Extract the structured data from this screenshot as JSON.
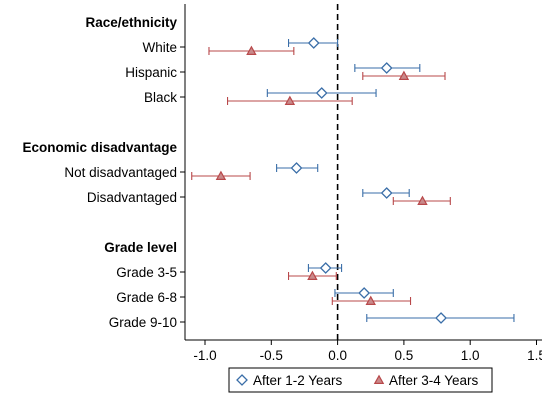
{
  "chart_data": {
    "type": "scatter",
    "subtype": "coefficient-plot",
    "title": "",
    "xlabel": "",
    "ylabel": "",
    "xlim": [
      -1.1,
      1.55
    ],
    "xticks": [
      -1.0,
      -0.5,
      0.0,
      0.5,
      1.0,
      1.5
    ],
    "xtick_labels": [
      "-1.0",
      "-0.5",
      "0.0",
      "0.5",
      "1.0",
      "1.5"
    ],
    "reference_line": {
      "x": 0,
      "style": "dashed"
    },
    "grid": false,
    "legend_position": "bottom",
    "colors": {
      "series1": "#3a6ea8",
      "series2": "#b8484a",
      "refline": "#000000"
    },
    "groups": [
      {
        "header": "Race/ethnicity",
        "rows": [
          "White",
          "Hispanic",
          "Black"
        ]
      },
      {
        "header": "Economic disadvantage",
        "rows": [
          "Not disadvantaged",
          "Disadvantaged"
        ]
      },
      {
        "header": "Grade level",
        "rows": [
          "Grade 3-5",
          "Grade 6-8",
          "Grade 9-10"
        ]
      }
    ],
    "series": [
      {
        "name": "After 1-2 Years",
        "marker": "diamond",
        "points": [
          {
            "label": "White",
            "value": -0.18,
            "lo": -0.37,
            "hi": 0.0
          },
          {
            "label": "Hispanic",
            "value": 0.37,
            "lo": 0.13,
            "hi": 0.62
          },
          {
            "label": "Black",
            "value": -0.12,
            "lo": -0.53,
            "hi": 0.29
          },
          {
            "label": "Not disadvantaged",
            "value": -0.31,
            "lo": -0.46,
            "hi": -0.15
          },
          {
            "label": "Disadvantaged",
            "value": 0.37,
            "lo": 0.19,
            "hi": 0.54
          },
          {
            "label": "Grade 3-5",
            "value": -0.09,
            "lo": -0.22,
            "hi": 0.03
          },
          {
            "label": "Grade 6-8",
            "value": 0.2,
            "lo": -0.02,
            "hi": 0.42
          },
          {
            "label": "Grade 9-10",
            "value": 0.78,
            "lo": 0.22,
            "hi": 1.33
          }
        ]
      },
      {
        "name": "After 3-4 Years",
        "marker": "triangle",
        "points": [
          {
            "label": "White",
            "value": -0.65,
            "lo": -0.97,
            "hi": -0.33
          },
          {
            "label": "Hispanic",
            "value": 0.5,
            "lo": 0.19,
            "hi": 0.81
          },
          {
            "label": "Black",
            "value": -0.36,
            "lo": -0.83,
            "hi": 0.11
          },
          {
            "label": "Not disadvantaged",
            "value": -0.88,
            "lo": -1.1,
            "hi": -0.66
          },
          {
            "label": "Disadvantaged",
            "value": 0.64,
            "lo": 0.42,
            "hi": 0.85
          },
          {
            "label": "Grade 3-5",
            "value": -0.19,
            "lo": -0.37,
            "hi": -0.01
          },
          {
            "label": "Grade 6-8",
            "value": 0.25,
            "lo": -0.04,
            "hi": 0.55
          }
        ]
      }
    ]
  }
}
